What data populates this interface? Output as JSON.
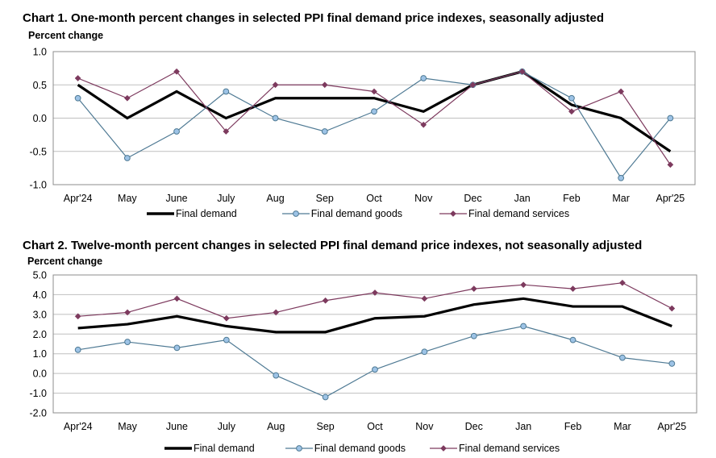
{
  "chart_data": [
    {
      "type": "line",
      "title": "Chart 1. One-month percent changes in selected PPI final demand price indexes, seasonally adjusted",
      "ylabel": "Percent change",
      "ylim": [
        -1.0,
        1.0
      ],
      "yticks": [
        "1.0",
        "0.5",
        "0.0",
        "-0.5",
        "-1.0"
      ],
      "grid": true,
      "legend_position": "bottom",
      "categories": [
        "Apr'24",
        "May",
        "June",
        "July",
        "Aug",
        "Sep",
        "Oct",
        "Nov",
        "Dec",
        "Jan",
        "Feb",
        "Mar",
        "Apr'25"
      ],
      "series": [
        {
          "name": "Final demand",
          "color": "#000000",
          "marker": "none",
          "values": [
            0.5,
            0.0,
            0.4,
            0.0,
            0.3,
            0.3,
            0.3,
            0.1,
            0.5,
            0.7,
            0.2,
            0.0,
            -0.5
          ]
        },
        {
          "name": "Final demand goods",
          "color": "#4F7A94",
          "marker": "circle",
          "values": [
            0.3,
            -0.6,
            -0.2,
            0.4,
            0.0,
            -0.2,
            0.1,
            0.6,
            0.5,
            0.7,
            0.3,
            -0.9,
            0.0
          ]
        },
        {
          "name": "Final demand services",
          "color": "#7D3A5E",
          "marker": "diamond",
          "values": [
            0.6,
            0.3,
            0.7,
            -0.2,
            0.5,
            0.5,
            0.4,
            -0.1,
            0.5,
            0.7,
            0.1,
            0.4,
            -0.7
          ]
        }
      ]
    },
    {
      "type": "line",
      "title": "Chart 2. Twelve-month percent changes in selected PPI final demand price indexes, not seasonally adjusted",
      "ylabel": "Percent change",
      "ylim": [
        -2.0,
        5.0
      ],
      "yticks": [
        "5.0",
        "4.0",
        "3.0",
        "2.0",
        "1.0",
        "0.0",
        "-1.0",
        "-2.0"
      ],
      "grid": true,
      "legend_position": "bottom",
      "categories": [
        "Apr'24",
        "May",
        "June",
        "July",
        "Aug",
        "Sep",
        "Oct",
        "Nov",
        "Dec",
        "Jan",
        "Feb",
        "Mar",
        "Apr'25"
      ],
      "series": [
        {
          "name": "Final demand",
          "color": "#000000",
          "marker": "none",
          "values": [
            2.3,
            2.5,
            2.9,
            2.4,
            2.1,
            2.1,
            2.8,
            2.9,
            3.5,
            3.8,
            3.4,
            3.4,
            2.4
          ]
        },
        {
          "name": "Final demand goods",
          "color": "#4F7A94",
          "marker": "circle",
          "values": [
            1.2,
            1.6,
            1.3,
            1.7,
            -0.1,
            -1.2,
            0.2,
            1.1,
            1.9,
            2.4,
            1.7,
            0.8,
            0.5
          ]
        },
        {
          "name": "Final demand services",
          "color": "#7D3A5E",
          "marker": "diamond",
          "values": [
            2.9,
            3.1,
            3.8,
            2.8,
            3.1,
            3.7,
            4.1,
            3.8,
            4.3,
            4.5,
            4.3,
            4.6,
            3.3
          ]
        }
      ]
    }
  ]
}
